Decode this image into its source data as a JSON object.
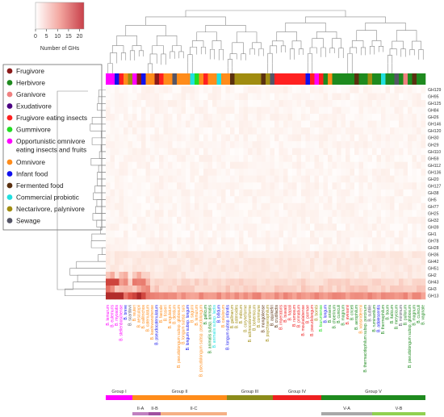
{
  "colorbar": {
    "label": "Number of GHs",
    "ticks": [
      "0",
      "5",
      "10",
      "15",
      "20"
    ],
    "low_color": "#ffffff",
    "high_color": "#c8404a"
  },
  "legend": [
    {
      "label": "Frugivore",
      "color": "#8b1a1a"
    },
    {
      "label": "Herbivore",
      "color": "#1e8a1e"
    },
    {
      "label": "Granivore",
      "color": "#f08080"
    },
    {
      "label": "Exudativore",
      "color": "#4b0082"
    },
    {
      "label": "Frugivore eating insects",
      "color": "#ff2020"
    },
    {
      "label": "Gummivore",
      "color": "#22dd22"
    },
    {
      "label": "Opportunistic omnivore eating insects and fruits",
      "color": "#ff00ff"
    },
    {
      "label": "Omnivore",
      "color": "#ff8c1a"
    },
    {
      "label": "Infant food",
      "color": "#1010ee"
    },
    {
      "label": "Fermented food",
      "color": "#5a3010"
    },
    {
      "label": "Commercial probiotic",
      "color": "#20e0e0"
    },
    {
      "label": "Nectarivore, palynivore",
      "color": "#a08c10"
    },
    {
      "label": "Sewage",
      "color": "#555566"
    }
  ],
  "gh_families": [
    "GH129",
    "GH95",
    "GH125",
    "GH84",
    "GH26",
    "GH146",
    "GH120",
    "GH30",
    "GH29",
    "GH110",
    "GH59",
    "GH112",
    "GH136",
    "GH20",
    "GH127",
    "GH38",
    "GH5",
    "GH77",
    "GH25",
    "GH32",
    "GH39",
    "GH1",
    "GH78",
    "GH28",
    "GH36",
    "GH42",
    "GH51",
    "GH2",
    "GH43",
    "GH3",
    "GH13"
  ],
  "groups": [
    {
      "label": "Group I",
      "color": "#ff00ff"
    },
    {
      "label": "Group II",
      "color": "#ff8c1a"
    },
    {
      "label": "Group III",
      "color": "#8b8b1a"
    },
    {
      "label": "Group IV",
      "color": "#ee2020"
    },
    {
      "label": "Group V",
      "color": "#1e8a1e"
    }
  ],
  "subgroups": [
    {
      "label": "II-A",
      "color": "#c080c0"
    },
    {
      "label": "II-B",
      "color": "#a050a0"
    },
    {
      "label": "II-C",
      "color": "#f5b085"
    },
    {
      "label": "V-A",
      "color": "#a8a8a8"
    },
    {
      "label": "V-B",
      "color": "#90d050"
    }
  ],
  "strain_labels": [
    {
      "text": "B. lemurum",
      "color": "#ff00ff"
    },
    {
      "text": "B. eulemuris",
      "color": "#ff00ff"
    },
    {
      "text": "B. myosotis",
      "color": "#ff00ff"
    },
    {
      "text": "B. stellenboschense",
      "color": "#ff00ff"
    },
    {
      "text": "B. breve",
      "color": "#1010ee"
    },
    {
      "text": "B. scardovii",
      "color": "#555566"
    },
    {
      "text": "B. reuteri",
      "color": "#ff8c1a"
    },
    {
      "text": "B. aesculapii",
      "color": "#ff8c1a"
    },
    {
      "text": "B. callitrichos",
      "color": "#ff8c1a"
    },
    {
      "text": "B. catenulatum",
      "color": "#ff8c1a"
    },
    {
      "text": "B. kashiwanohense",
      "color": "#ff8c1a"
    },
    {
      "text": "B. pseudocatenulatum",
      "color": "#1010ee"
    },
    {
      "text": "B. faecale",
      "color": "#ff8c1a"
    },
    {
      "text": "B. tissieri",
      "color": "#ff8c1a"
    },
    {
      "text": "B. angulatum",
      "color": "#ff8c1a"
    },
    {
      "text": "B. dentium",
      "color": "#ff8c1a"
    },
    {
      "text": "B. pseudolongum subsp. globosum",
      "color": "#ff8c1a"
    },
    {
      "text": "B. longum subsp. suis",
      "color": "#ff8c1a"
    },
    {
      "text": "B. longum subsp. longum",
      "color": "#1010ee"
    },
    {
      "text": "B. saguini",
      "color": "#ff8c1a"
    },
    {
      "text": "B. lemurum",
      "color": "#ff8c1a"
    },
    {
      "text": "B. pseudolongum subsp. pseudolongum",
      "color": "#ff8c1a"
    },
    {
      "text": "B. gallicum",
      "color": "#1e8a1e"
    },
    {
      "text": "B. animalis subsp. animalis",
      "color": "#1e8a1e"
    },
    {
      "text": "B. animalis subsp. lactis",
      "color": "#20e0e0"
    },
    {
      "text": "B. bifidum",
      "color": "#1010ee"
    },
    {
      "text": "B. catulorum",
      "color": "#ff8c1a"
    },
    {
      "text": "B. longum subsp. infantis",
      "color": "#1010ee"
    },
    {
      "text": "B. gallinarum",
      "color": "#a08c10"
    },
    {
      "text": "B. asteroides",
      "color": "#a08c10"
    },
    {
      "text": "B. indicum",
      "color": "#a08c10"
    },
    {
      "text": "B. coryneforme",
      "color": "#a08c10"
    },
    {
      "text": "B. actinocoloniiforme",
      "color": "#a08c10"
    },
    {
      "text": "B. bohemicum",
      "color": "#a08c10"
    },
    {
      "text": "B. commune",
      "color": "#a08c10"
    },
    {
      "text": "B. mongoliense",
      "color": "#5a3010"
    },
    {
      "text": "B. psychraerophilum",
      "color": "#a08c10"
    },
    {
      "text": "B. aquikefiri",
      "color": "#5a3010"
    },
    {
      "text": "B. crudilactis",
      "color": "#5a3010"
    },
    {
      "text": "B. imperatoris",
      "color": "#ee2020"
    },
    {
      "text": "B. biavatii",
      "color": "#ee2020"
    },
    {
      "text": "B. hapali",
      "color": "#ee2020"
    },
    {
      "text": "B. ramosum",
      "color": "#ee2020"
    },
    {
      "text": "B. primatium",
      "color": "#ee2020"
    },
    {
      "text": "B. moukalabense",
      "color": "#ee2020"
    },
    {
      "text": "B. parmae",
      "color": "#ee2020"
    },
    {
      "text": "B. pseudolongum",
      "color": "#ee2020"
    },
    {
      "text": "B. bombi",
      "color": "#a08c10"
    },
    {
      "text": "B. tsurumiense",
      "color": "#22dd22"
    },
    {
      "text": "B. longum",
      "color": "#1010ee"
    },
    {
      "text": "B. anseris",
      "color": "#1e8a1e"
    },
    {
      "text": "B. choerinum",
      "color": "#1e8a1e"
    },
    {
      "text": "B. cuniculi",
      "color": "#1e8a1e"
    },
    {
      "text": "B. magnum",
      "color": "#1e8a1e"
    },
    {
      "text": "B. avesanii",
      "color": "#ee2020"
    },
    {
      "text": "B. criceti",
      "color": "#1e8a1e"
    },
    {
      "text": "B. aerophilum",
      "color": "#1e8a1e"
    },
    {
      "text": "B. vansinderenii",
      "color": "#ff8c1a"
    },
    {
      "text": "B. thermacidophilum subsp. porcinum",
      "color": "#1e8a1e"
    },
    {
      "text": "B. subtile",
      "color": "#555566"
    },
    {
      "text": "B. ruminantium",
      "color": "#1e8a1e"
    },
    {
      "text": "B. adolescentis",
      "color": "#1010ee"
    },
    {
      "text": "B. thermophilum",
      "color": "#1e8a1e"
    },
    {
      "text": "B. boum",
      "color": "#1e8a1e"
    },
    {
      "text": "B. italicum",
      "color": "#1e8a1e"
    },
    {
      "text": "B. merycicum",
      "color": "#1e8a1e"
    },
    {
      "text": "B. minimum",
      "color": "#555566"
    },
    {
      "text": "B. pullorum",
      "color": "#1e8a1e"
    },
    {
      "text": "B. pseudolongum subsp. globosum",
      "color": "#1e8a1e"
    },
    {
      "text": "B. magnum",
      "color": "#1e8a1e"
    },
    {
      "text": "B. cuniculi",
      "color": "#1e8a1e"
    },
    {
      "text": "B. vaginale",
      "color": "#1e8a1e"
    }
  ]
}
